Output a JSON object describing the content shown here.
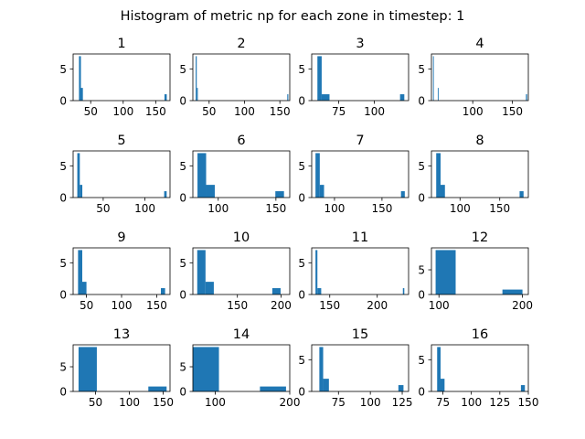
{
  "figure": {
    "title": "Histogram of metric np for each zone in timestep: 1",
    "bar_color": "#1f77b4"
  },
  "chart_data": [
    {
      "type": "bar",
      "title": "1",
      "xlim": [
        23,
        172
      ],
      "ylim": [
        0,
        7.35
      ],
      "xticks": [
        50,
        100,
        150
      ],
      "yticks": [
        0,
        5
      ],
      "bins": [
        [
          32.0,
          35.0,
          7
        ],
        [
          35.0,
          38.0,
          2
        ],
        [
          163.5,
          167.0,
          1
        ]
      ]
    },
    {
      "type": "bar",
      "title": "2",
      "xlim": [
        27,
        164
      ],
      "ylim": [
        0,
        7.35
      ],
      "xticks": [
        50,
        100,
        150
      ],
      "yticks": [
        0,
        5
      ],
      "bins": [
        [
          31.0,
          32.5,
          7
        ],
        [
          32.5,
          34.0,
          2
        ],
        [
          160.5,
          162.0,
          1
        ]
      ]
    },
    {
      "type": "bar",
      "title": "3",
      "xlim": [
        56,
        124
      ],
      "ylim": [
        0,
        7.35
      ],
      "xticks": [
        75,
        100
      ],
      "yticks": [
        0,
        5
      ],
      "bins": [
        [
          60.0,
          63.0,
          7
        ],
        [
          63.0,
          68.5,
          1
        ],
        [
          118.0,
          121.0,
          1
        ]
      ]
    },
    {
      "type": "bar",
      "title": "4",
      "xlim": [
        48,
        170
      ],
      "ylim": [
        0,
        7.35
      ],
      "xticks": [
        100,
        150
      ],
      "yticks": [
        0,
        5
      ],
      "bins": [
        [
          50.0,
          51.0,
          7
        ],
        [
          56.0,
          57.0,
          2
        ],
        [
          167.0,
          168.5,
          1
        ]
      ]
    },
    {
      "type": "bar",
      "title": "5",
      "xlim": [
        14,
        130
      ],
      "ylim": [
        0,
        7.35
      ],
      "xticks": [
        50,
        100
      ],
      "yticks": [
        0,
        5
      ],
      "bins": [
        [
          19.0,
          22.0,
          7
        ],
        [
          22.0,
          25.0,
          2
        ],
        [
          123.0,
          126.0,
          1
        ]
      ]
    },
    {
      "type": "bar",
      "title": "6",
      "xlim": [
        78,
        162
      ],
      "ylim": [
        0,
        7.35
      ],
      "xticks": [
        100,
        150
      ],
      "yticks": [
        0,
        5
      ],
      "bins": [
        [
          82.0,
          89.5,
          7
        ],
        [
          89.5,
          97.0,
          2
        ],
        [
          149.5,
          157.0,
          1
        ]
      ]
    },
    {
      "type": "bar",
      "title": "7",
      "xlim": [
        76,
        178
      ],
      "ylim": [
        0,
        7.35
      ],
      "xticks": [
        100,
        150
      ],
      "yticks": [
        0,
        5
      ],
      "bins": [
        [
          80.0,
          84.5,
          7
        ],
        [
          84.5,
          89.0,
          2
        ],
        [
          170.0,
          174.0,
          1
        ]
      ]
    },
    {
      "type": "bar",
      "title": "8",
      "xlim": [
        64,
        186
      ],
      "ylim": [
        0,
        7.35
      ],
      "xticks": [
        100,
        150
      ],
      "yticks": [
        0,
        5
      ],
      "bins": [
        [
          70.0,
          75.5,
          7
        ],
        [
          75.5,
          81.0,
          2
        ],
        [
          175.0,
          180.0,
          1
        ]
      ]
    },
    {
      "type": "bar",
      "title": "9",
      "xlim": [
        31,
        169
      ],
      "ylim": [
        0,
        7.35
      ],
      "xticks": [
        50,
        100,
        150
      ],
      "yticks": [
        0,
        5
      ],
      "bins": [
        [
          38.0,
          44.0,
          7
        ],
        [
          44.0,
          50.0,
          2
        ],
        [
          156.0,
          162.0,
          1
        ]
      ]
    },
    {
      "type": "bar",
      "title": "10",
      "xlim": [
        99,
        210
      ],
      "ylim": [
        0,
        7.35
      ],
      "xticks": [
        150,
        200
      ],
      "yticks": [
        0,
        5
      ],
      "bins": [
        [
          104.0,
          113.5,
          7
        ],
        [
          113.5,
          123.0,
          2
        ],
        [
          190.0,
          199.5,
          1
        ]
      ]
    },
    {
      "type": "bar",
      "title": "11",
      "xlim": [
        131,
        233
      ],
      "ylim": [
        0,
        7.35
      ],
      "xticks": [
        150,
        200
      ],
      "yticks": [
        0,
        5
      ],
      "bins": [
        [
          135.0,
          137.0,
          7
        ],
        [
          137.0,
          141.0,
          1
        ],
        [
          227.0,
          228.5,
          1
        ]
      ]
    },
    {
      "type": "bar",
      "title": "12",
      "xlim": [
        91,
        207
      ],
      "ylim": [
        0,
        9.45
      ],
      "xticks": [
        100,
        200
      ],
      "yticks": [
        0,
        5
      ],
      "bins": [
        [
          96.0,
          120.0,
          9
        ],
        [
          176.0,
          200.0,
          1
        ]
      ]
    },
    {
      "type": "bar",
      "title": "13",
      "xlim": [
        17,
        160
      ],
      "ylim": [
        0,
        9.45
      ],
      "xticks": [
        50,
        100,
        150
      ],
      "yticks": [
        0,
        5
      ],
      "bins": [
        [
          25.0,
          52.0,
          9
        ],
        [
          128.0,
          155.0,
          1
        ]
      ]
    },
    {
      "type": "bar",
      "title": "14",
      "xlim": [
        70,
        200
      ],
      "ylim": [
        0,
        9.45
      ],
      "xticks": [
        100,
        200
      ],
      "yticks": [
        0,
        5
      ],
      "bins": [
        [
          70.0,
          105.0,
          9
        ],
        [
          160.0,
          195.0,
          1
        ]
      ]
    },
    {
      "type": "bar",
      "title": "15",
      "xlim": [
        54,
        130
      ],
      "ylim": [
        0,
        7.35
      ],
      "xticks": [
        75,
        100,
        125
      ],
      "yticks": [
        0,
        5
      ],
      "bins": [
        [
          60.0,
          63.0,
          7
        ],
        [
          63.0,
          67.5,
          2
        ],
        [
          122.0,
          126.0,
          1
        ]
      ]
    },
    {
      "type": "bar",
      "title": "16",
      "xlim": [
        65,
        150
      ],
      "ylim": [
        0,
        7.35
      ],
      "xticks": [
        75,
        100,
        125,
        150
      ],
      "yticks": [
        0,
        5
      ],
      "bins": [
        [
          70.0,
          73.0,
          7
        ],
        [
          73.0,
          76.5,
          2
        ],
        [
          143.5,
          147.0,
          1
        ]
      ]
    }
  ]
}
